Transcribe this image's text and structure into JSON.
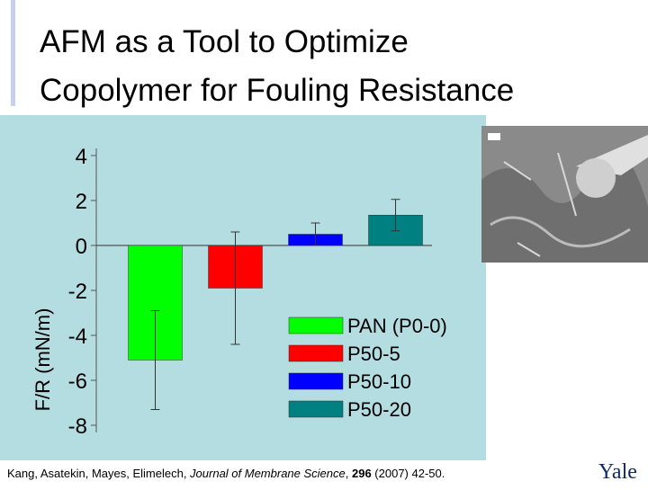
{
  "slide": {
    "title_lines": [
      "AFM as a Tool to Optimize",
      "Copolymer for Fouling Resistance"
    ],
    "citation": {
      "authors": "Kang, Asatekin, Mayes, Elimelech, ",
      "journal": "Journal of Membrane Science",
      "sep": ", ",
      "volume": "296",
      "rest": " (2007) 42-50."
    },
    "logo": "Yale"
  },
  "chart_data": {
    "type": "bar",
    "y_label": "F/R (mN/m)",
    "categories": [
      "PAN (P0-0)",
      "P50-5",
      "P50-10",
      "P50-20"
    ],
    "values": [
      -5.1,
      -1.9,
      0.5,
      1.35
    ],
    "errors": [
      2.2,
      2.5,
      0.5,
      0.7
    ],
    "colors": [
      "#00ff00",
      "#ff0000",
      "#0000ff",
      "#008080"
    ],
    "ylim": [
      -8,
      4
    ],
    "yticks": [
      -8,
      -6,
      -4,
      -2,
      0,
      2,
      4
    ]
  }
}
